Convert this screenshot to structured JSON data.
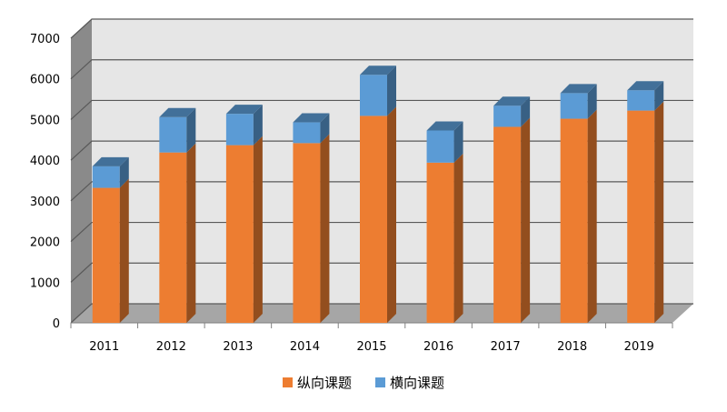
{
  "chart_data": {
    "type": "bar",
    "stacked": true,
    "style": "3d",
    "categories": [
      "2011",
      "2012",
      "2013",
      "2014",
      "2015",
      "2016",
      "2017",
      "2018",
      "2019"
    ],
    "series": [
      {
        "name": "纵向课题",
        "color": "#ED7D31",
        "values": [
          3320,
          4190,
          4370,
          4420,
          5090,
          3940,
          4820,
          5020,
          5220
        ]
      },
      {
        "name": "横向课题",
        "color": "#5B9BD5",
        "values": [
          530,
          870,
          770,
          510,
          1010,
          790,
          520,
          630,
          500
        ]
      }
    ],
    "y_ticks": [
      "0",
      "1000",
      "2000",
      "3000",
      "4000",
      "5000",
      "6000",
      "7000"
    ],
    "ylim": [
      0,
      7000
    ],
    "grid": true,
    "legend_position": "bottom"
  }
}
